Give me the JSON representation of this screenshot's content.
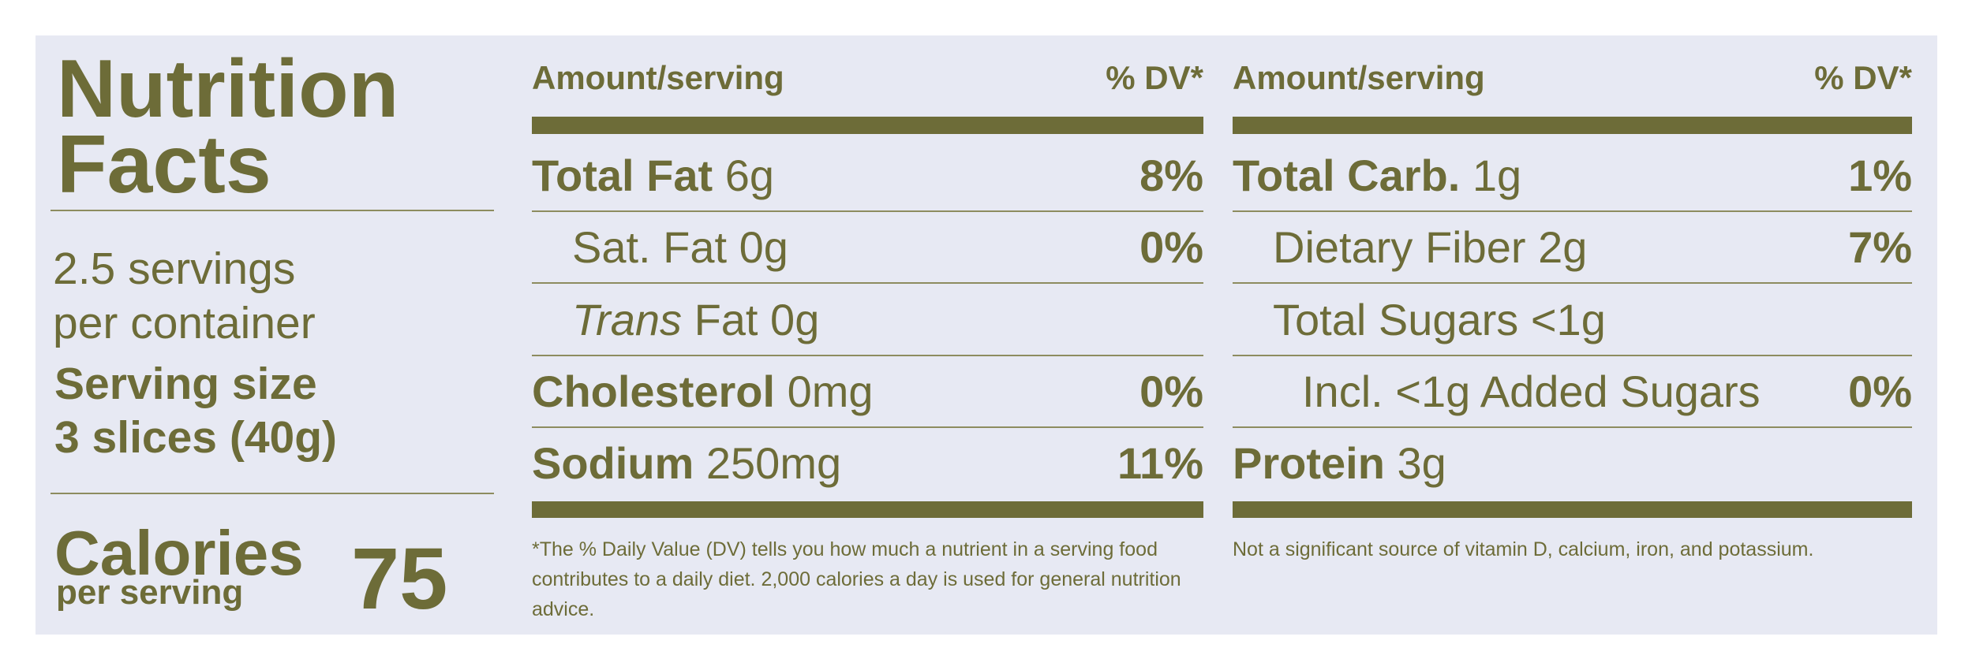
{
  "header": {
    "title_line1": "Nutrition",
    "title_line2": "Facts",
    "servings_line1": "2.5 servings",
    "servings_line2": "per container",
    "serving_size_label": "Serving size",
    "serving_size": "3 slices (40g)",
    "calories_label": "Calories",
    "calories_sublabel": "per serving",
    "calories": "75"
  },
  "columns": [
    {
      "header_amount": "Amount/serving",
      "header_dv": "% DV*",
      "rows": [
        {
          "name": "Total Fat",
          "amount": "6g",
          "dv": "8%",
          "indent": 0
        },
        {
          "name": "Sat. Fat",
          "amount": "0g",
          "dv": "0%",
          "indent": 1
        },
        {
          "italic": "Trans",
          "name": "Fat",
          "amount": "0g",
          "indent": 1
        },
        {
          "name": "Cholesterol",
          "amount": "0mg",
          "dv": "0%",
          "indent": 0
        },
        {
          "name": "Sodium",
          "amount": "250mg",
          "dv": "11%",
          "indent": 0
        }
      ],
      "footnote": "*The % Daily Value (DV) tells you how much a nutrient in a serving food contributes to a daily diet. 2,000 calories a day is used for general nutrition advice."
    },
    {
      "header_amount": "Amount/serving",
      "header_dv": "% DV*",
      "rows": [
        {
          "name": "Total Carb.",
          "amount": "1g",
          "dv": "1%",
          "indent": 0
        },
        {
          "name": "Dietary Fiber",
          "amount": "2g",
          "dv": "7%",
          "indent": 1
        },
        {
          "name": "Total Sugars",
          "amount": "<1g",
          "indent": 1
        },
        {
          "name": "Incl. <1g Added Sugars",
          "dv": "0%",
          "indent": 2
        },
        {
          "name": "Protein",
          "amount": "3g",
          "indent": 0
        }
      ],
      "footnote": "Not a significant source of vitamin D, calcium, iron, and potassium."
    }
  ]
}
